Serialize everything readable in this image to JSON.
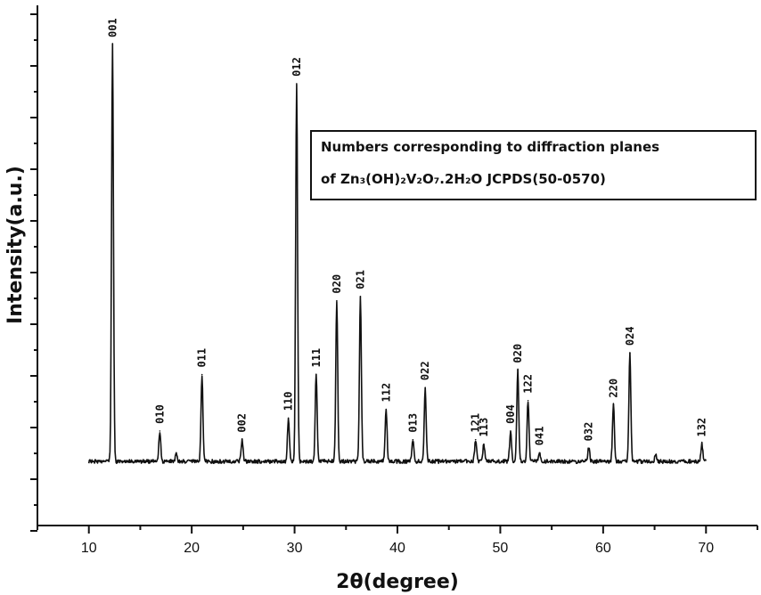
{
  "chart_data": {
    "type": "line",
    "xlabel": "2θ(degree)",
    "ylabel": "Intensity(a.u.)",
    "xlim": [
      5,
      75
    ],
    "x_ticks": [
      10,
      20,
      30,
      40,
      50,
      60,
      70
    ],
    "y_tick_labels": false,
    "grid": false,
    "annotation_box": {
      "line1": "Numbers corresponding to diffraction planes",
      "line2": "of Zn₃(OH)₂V₂O₇.2H₂O JCPDS(50-0570)"
    },
    "baseline": 4,
    "peaks": [
      {
        "x": 12.3,
        "y": 100,
        "label": "001"
      },
      {
        "x": 16.9,
        "y": 11,
        "label": "010"
      },
      {
        "x": 18.5,
        "y": 6
      },
      {
        "x": 21.0,
        "y": 24,
        "label": "011"
      },
      {
        "x": 24.9,
        "y": 9,
        "label": "002"
      },
      {
        "x": 29.4,
        "y": 14,
        "label": "110"
      },
      {
        "x": 30.2,
        "y": 91,
        "label": "012"
      },
      {
        "x": 32.1,
        "y": 24,
        "label": "111"
      },
      {
        "x": 34.1,
        "y": 41,
        "label": "020"
      },
      {
        "x": 36.4,
        "y": 42,
        "label": "021"
      },
      {
        "x": 38.9,
        "y": 16,
        "label": "112"
      },
      {
        "x": 41.5,
        "y": 9,
        "label": "013"
      },
      {
        "x": 42.7,
        "y": 21,
        "label": "022"
      },
      {
        "x": 47.6,
        "y": 9,
        "label": "121"
      },
      {
        "x": 48.4,
        "y": 8,
        "label": "113"
      },
      {
        "x": 51.0,
        "y": 11,
        "label": "004"
      },
      {
        "x": 51.7,
        "y": 25,
        "label": "020"
      },
      {
        "x": 52.7,
        "y": 18,
        "label": "122"
      },
      {
        "x": 53.8,
        "y": 6,
        "label": "041"
      },
      {
        "x": 58.6,
        "y": 7,
        "label": "032"
      },
      {
        "x": 61.0,
        "y": 17,
        "label": "220"
      },
      {
        "x": 62.6,
        "y": 29,
        "label": "024"
      },
      {
        "x": 65.1,
        "y": 5.5
      },
      {
        "x": 69.6,
        "y": 8,
        "label": "132"
      }
    ]
  }
}
